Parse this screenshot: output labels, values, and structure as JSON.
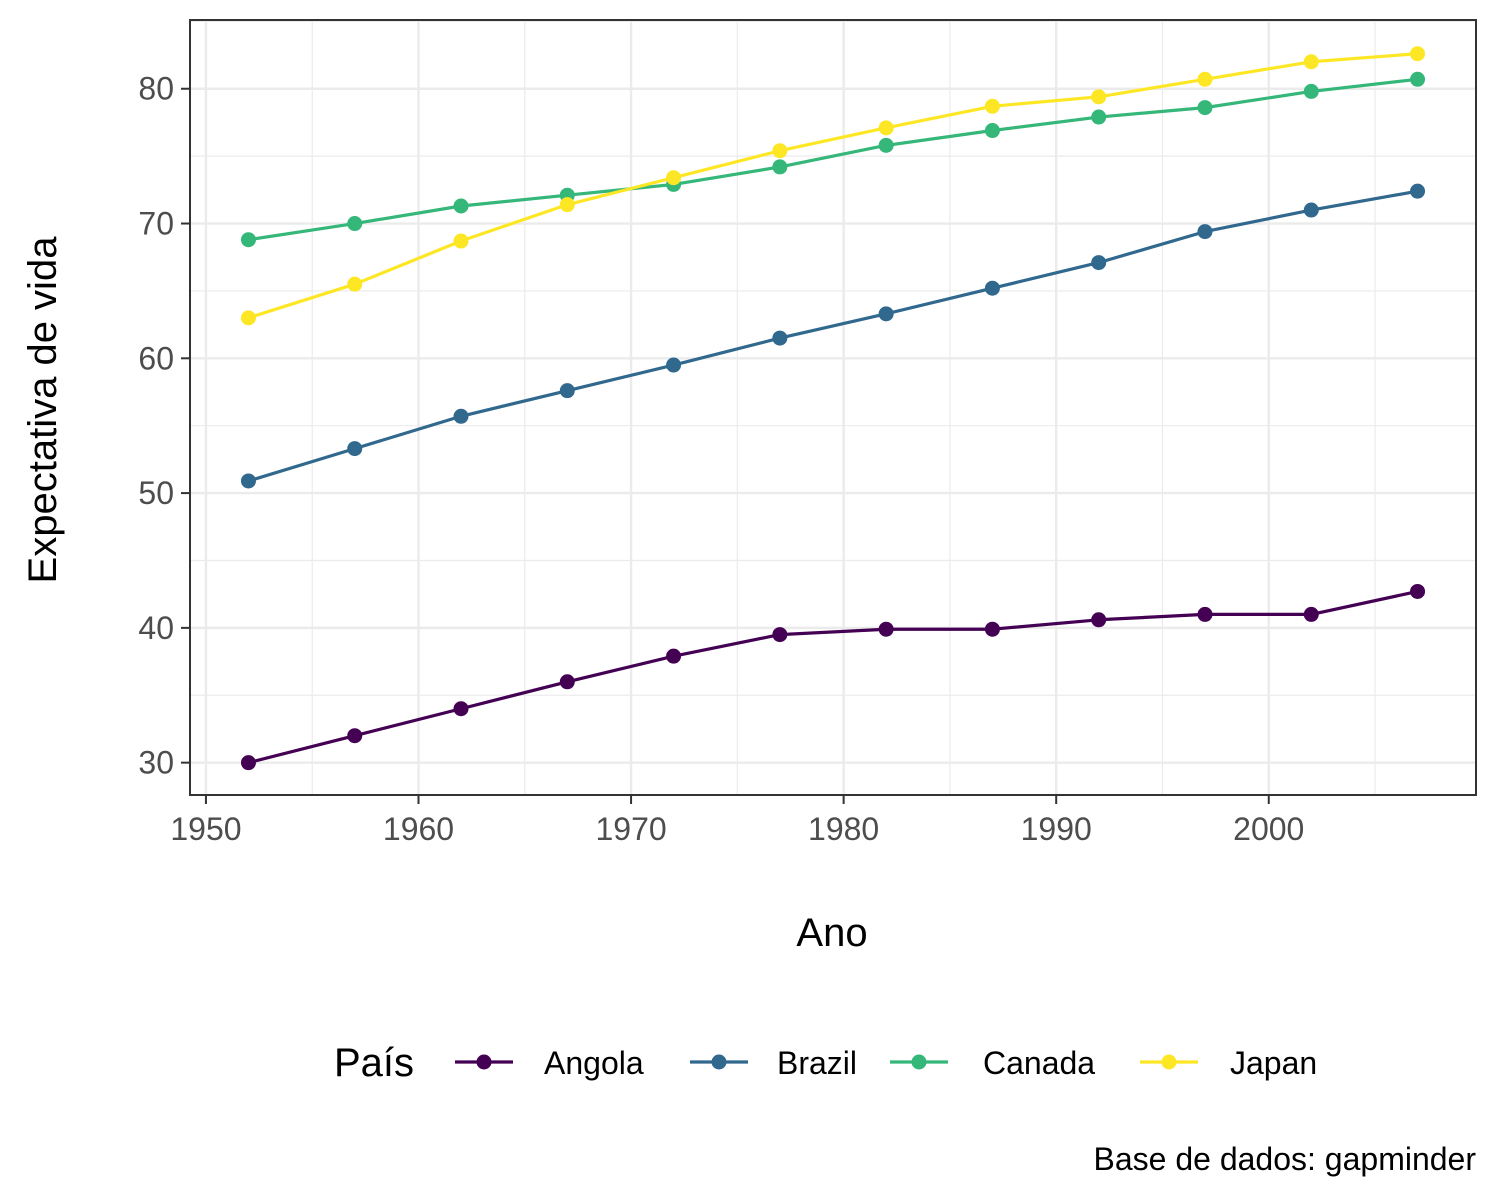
{
  "chart_data": {
    "type": "line",
    "title": "",
    "xlabel": "Ano",
    "ylabel": "Expectativa de vida",
    "caption": "Base de dados: gapminder",
    "legend_title": "País",
    "legend_position": "bottom",
    "grid": true,
    "xlim": [
      1949.25,
      2009.75
    ],
    "ylim": [
      27.6,
      85.1
    ],
    "x_ticks": [
      1950,
      1960,
      1970,
      1980,
      1990,
      2000
    ],
    "y_ticks": [
      30,
      40,
      50,
      60,
      70,
      80
    ],
    "x": [
      1952,
      1957,
      1962,
      1967,
      1972,
      1977,
      1982,
      1987,
      1992,
      1997,
      2002,
      2007
    ],
    "series": [
      {
        "name": "Angola",
        "color": "#440154",
        "values": [
          30.0,
          32.0,
          34.0,
          36.0,
          37.9,
          39.5,
          39.9,
          39.9,
          40.6,
          41.0,
          41.0,
          42.7
        ]
      },
      {
        "name": "Brazil",
        "color": "#31688E",
        "values": [
          50.9,
          53.3,
          55.7,
          57.6,
          59.5,
          61.5,
          63.3,
          65.2,
          67.1,
          69.4,
          71.0,
          72.4
        ]
      },
      {
        "name": "Canada",
        "color": "#35B779",
        "values": [
          68.8,
          70.0,
          71.3,
          72.1,
          72.9,
          74.2,
          75.8,
          76.9,
          77.9,
          78.6,
          79.8,
          80.7
        ]
      },
      {
        "name": "Japan",
        "color": "#FDE725",
        "values": [
          63.0,
          65.5,
          68.7,
          71.4,
          73.4,
          75.4,
          77.1,
          78.7,
          79.4,
          80.7,
          82.0,
          82.6
        ]
      }
    ]
  }
}
